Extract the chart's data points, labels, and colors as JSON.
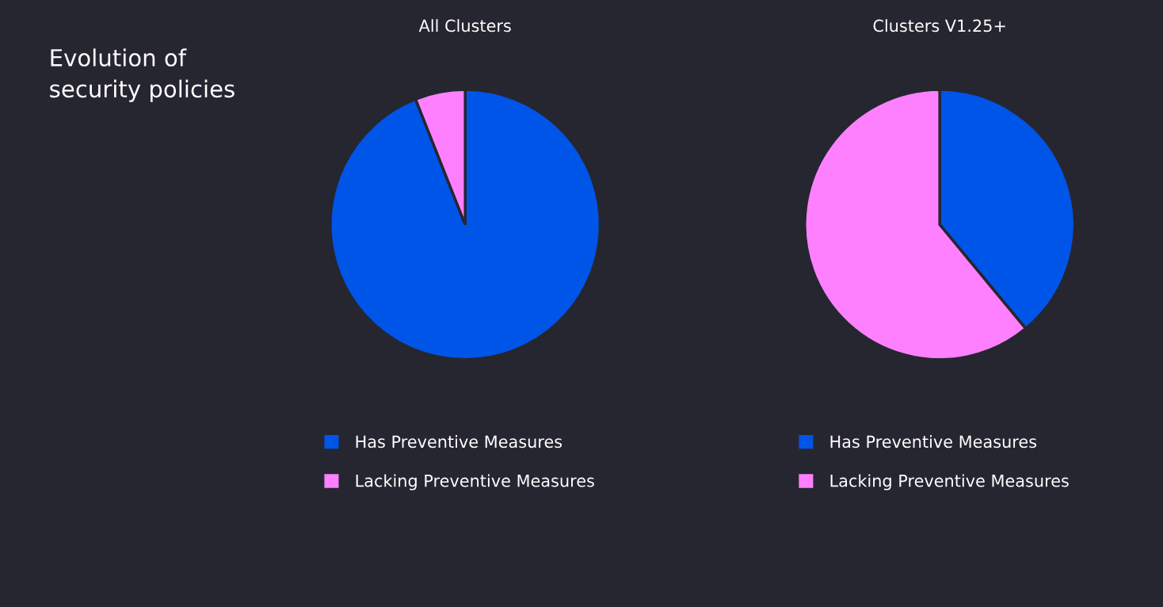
{
  "chart_data": [
    {
      "type": "other",
      "title": "Evolution of\nsecurity policies"
    },
    {
      "type": "pie",
      "title": "All Clusters",
      "categories": [
        "Has Preventive Measures",
        "Lacking Preventive Measures"
      ],
      "values": [
        94,
        6
      ],
      "colors": [
        "#0055e9",
        "#ff80ff"
      ],
      "legend": "bottom"
    },
    {
      "type": "pie",
      "title": "Clusters V1.25+",
      "categories": [
        "Has Preventive Measures",
        "Lacking Preventive Measures"
      ],
      "values": [
        39,
        61
      ],
      "colors": [
        "#0055e9",
        "#ff80ff"
      ],
      "legend": "bottom"
    }
  ]
}
